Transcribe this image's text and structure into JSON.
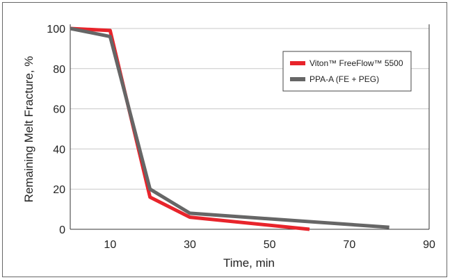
{
  "chart_data": {
    "type": "line",
    "title": "",
    "xlabel": "Time, min",
    "ylabel": "Remaining Melt Fracture, %",
    "xlim": [
      0,
      90
    ],
    "ylim": [
      0,
      100
    ],
    "xticks": [
      10,
      30,
      50,
      70,
      90
    ],
    "yticks": [
      0,
      20,
      40,
      60,
      80,
      100
    ],
    "grid": "horizontal",
    "legend_position": "top-right",
    "series": [
      {
        "name": "Viton™ FreeFlow™ 5500",
        "color": "#e8242b",
        "x": [
          0,
          10,
          20,
          30,
          60
        ],
        "y": [
          100,
          99,
          16,
          6,
          0
        ]
      },
      {
        "name": "PPA-A (FE + PEG)",
        "color": "#666666",
        "x": [
          0,
          10,
          20,
          30,
          80
        ],
        "y": [
          100,
          96,
          20,
          8,
          1
        ]
      }
    ]
  }
}
